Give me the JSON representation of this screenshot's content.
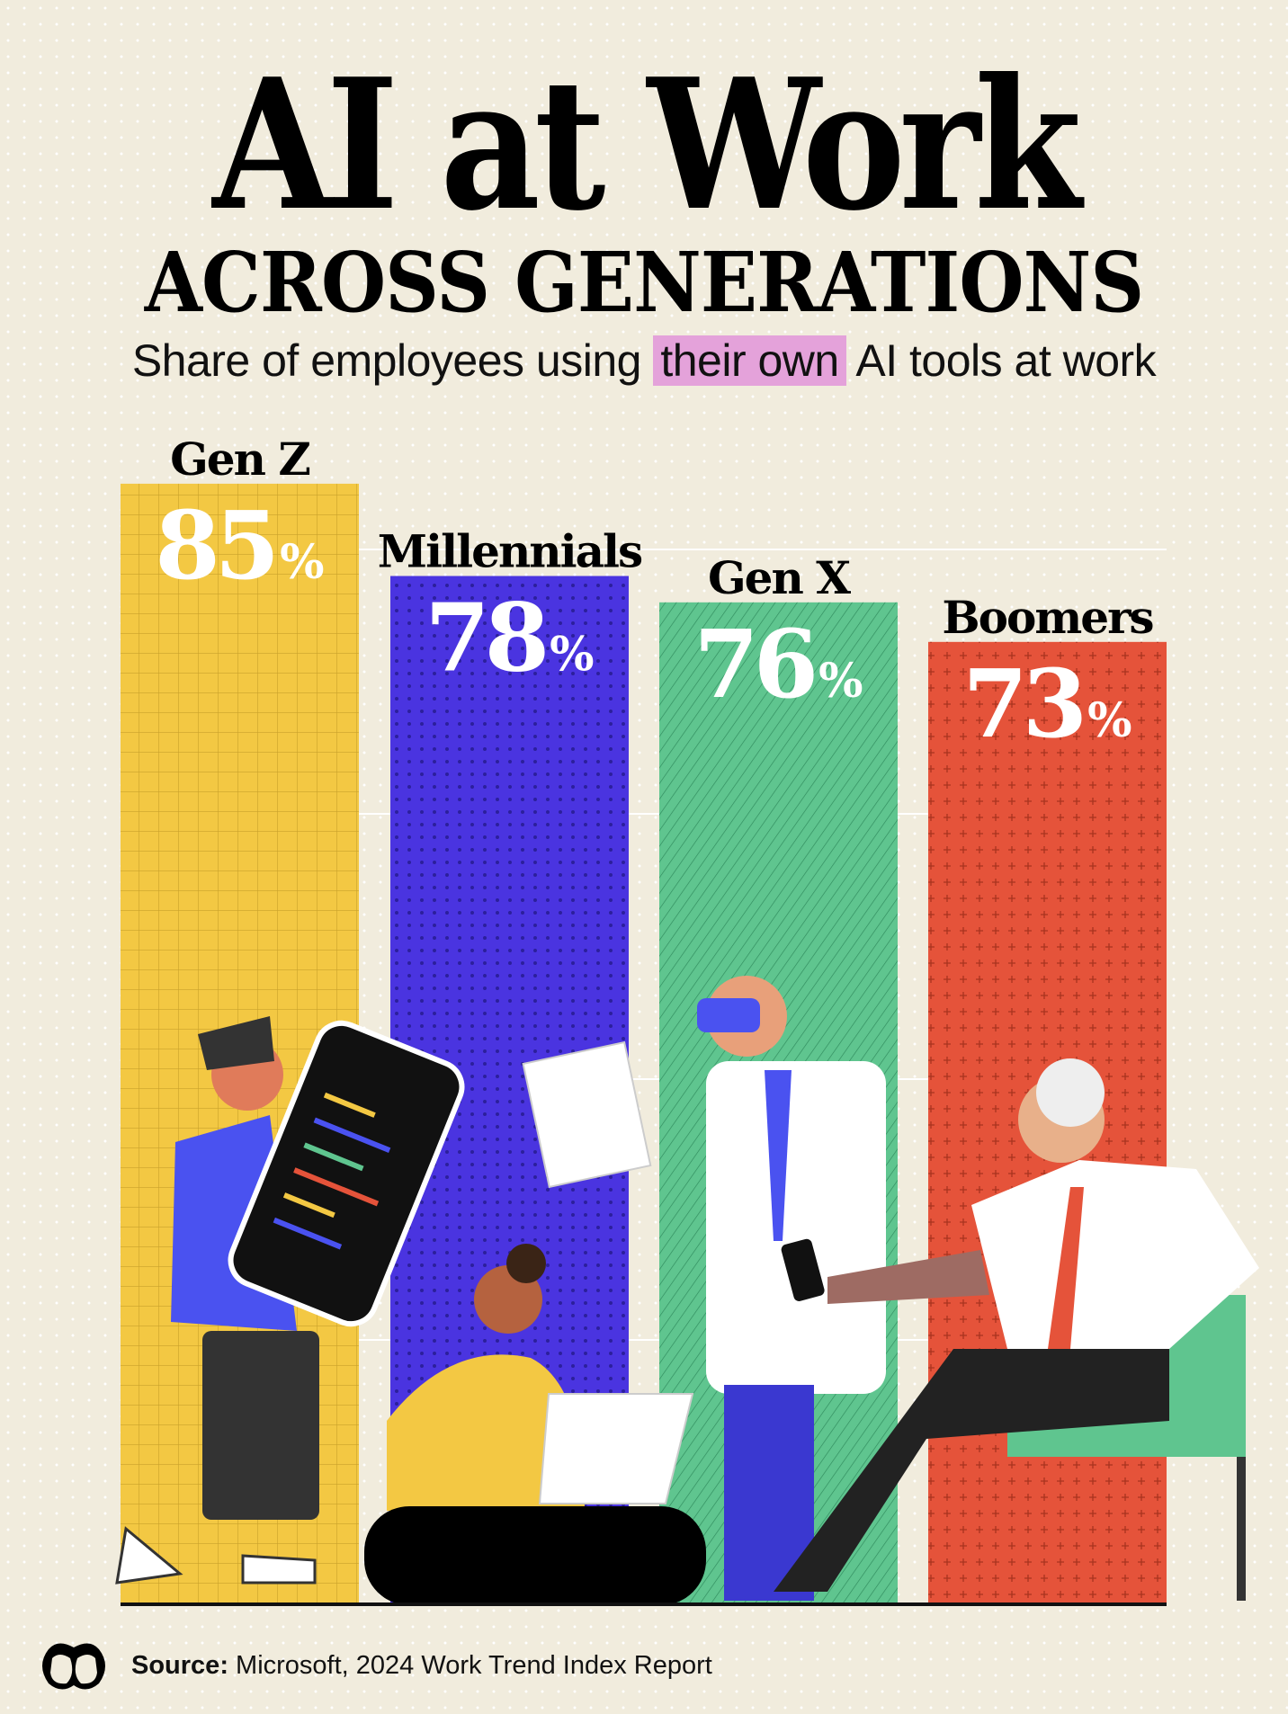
{
  "header": {
    "title": "AI at Work",
    "subtitle": "ACROSS GENERATIONS",
    "description_before": "Share of employees using",
    "description_highlight": "their own",
    "description_after": "AI tools at work",
    "highlight_color": "#e4a2da"
  },
  "chart_data": {
    "type": "bar",
    "title": "AI at Work Across Generations",
    "subtitle": "Share of employees using their own AI tools at work",
    "categories": [
      "Gen Z",
      "Millennials",
      "Gen X",
      "Boomers"
    ],
    "values": [
      85,
      78,
      76,
      73
    ],
    "value_suffix": "%",
    "value_labels": [
      "85",
      "78",
      "76",
      "73"
    ],
    "colors": [
      "#f3c843",
      "#4a34e0",
      "#5fc58f",
      "#e5533a"
    ],
    "ylim": [
      0,
      100
    ],
    "grid": false,
    "legend": "none"
  },
  "footer": {
    "source_label": "Source:",
    "source_text": "Microsoft, 2024 Work Trend Index Report"
  }
}
